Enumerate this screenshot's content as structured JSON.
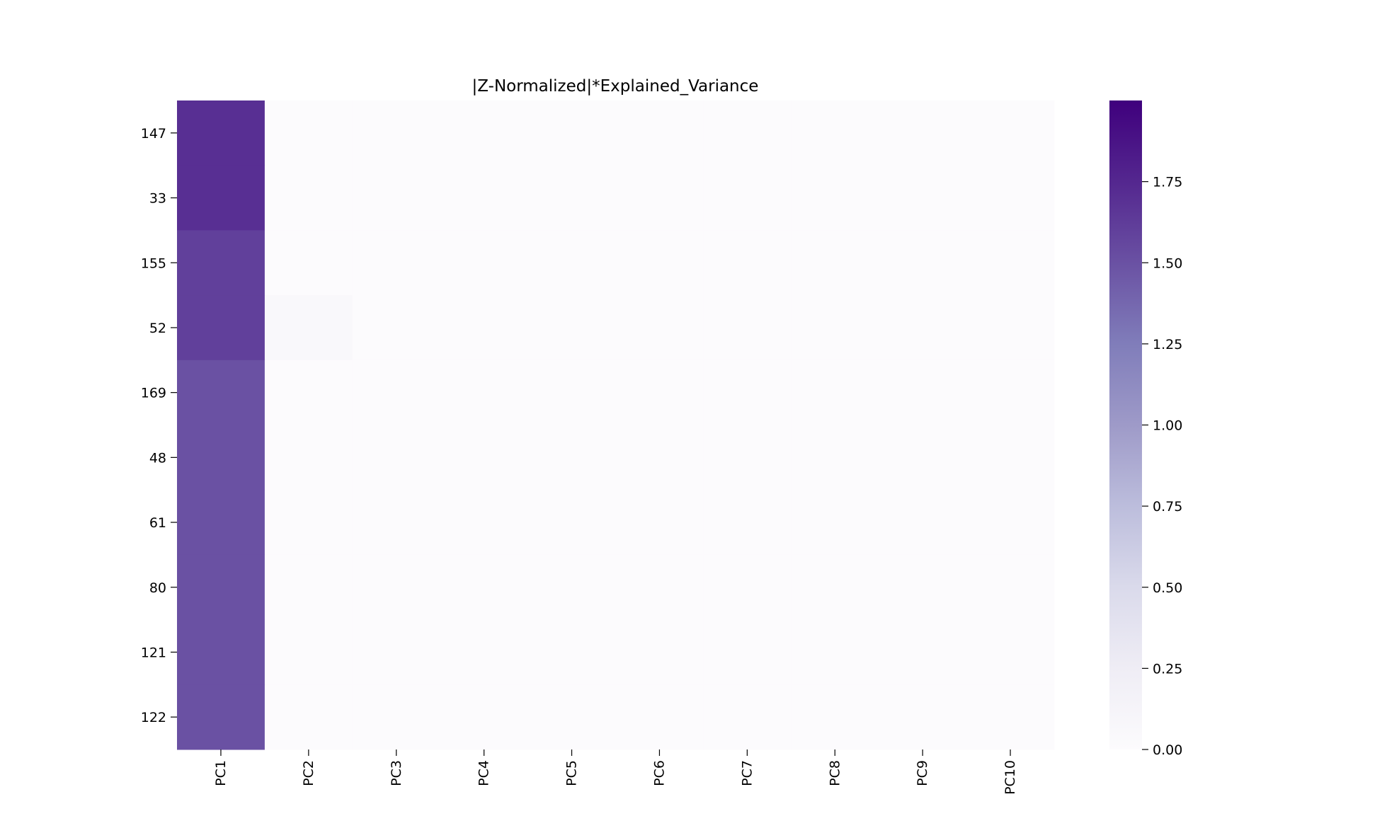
{
  "chart_data": {
    "type": "heatmap",
    "title": "|Z-Normalized|*Explained_Variance",
    "xlabel": "",
    "ylabel": "",
    "x_categories": [
      "PC1",
      "PC2",
      "PC3",
      "PC4",
      "PC5",
      "PC6",
      "PC7",
      "PC8",
      "PC9",
      "PC10"
    ],
    "y_categories": [
      "147",
      "33",
      "155",
      "52",
      "169",
      "48",
      "61",
      "80",
      "121",
      "122"
    ],
    "values": [
      [
        1.7,
        0.0,
        0.0,
        0.0,
        0.0,
        0.0,
        0.0,
        0.0,
        0.0,
        0.0
      ],
      [
        1.7,
        0.0,
        0.0,
        0.0,
        0.0,
        0.0,
        0.0,
        0.0,
        0.0,
        0.0
      ],
      [
        1.6,
        0.0,
        0.0,
        0.0,
        0.0,
        0.0,
        0.0,
        0.0,
        0.0,
        0.0
      ],
      [
        1.6,
        0.05,
        0.0,
        0.0,
        0.0,
        0.0,
        0.0,
        0.0,
        0.0,
        0.0
      ],
      [
        1.5,
        0.0,
        0.0,
        0.0,
        0.0,
        0.0,
        0.0,
        0.0,
        0.0,
        0.0
      ],
      [
        1.5,
        0.0,
        0.0,
        0.0,
        0.0,
        0.0,
        0.0,
        0.0,
        0.0,
        0.0
      ],
      [
        1.5,
        0.0,
        0.0,
        0.0,
        0.0,
        0.0,
        0.0,
        0.0,
        0.0,
        0.0
      ],
      [
        1.5,
        0.0,
        0.0,
        0.0,
        0.0,
        0.0,
        0.0,
        0.0,
        0.0,
        0.0
      ],
      [
        1.5,
        0.0,
        0.0,
        0.0,
        0.0,
        0.0,
        0.0,
        0.0,
        0.0,
        0.0
      ],
      [
        1.5,
        0.0,
        0.0,
        0.0,
        0.0,
        0.0,
        0.0,
        0.0,
        0.0,
        0.0
      ]
    ],
    "colorbar": {
      "min": 0,
      "max": 2.0,
      "ticks": [
        0.0,
        0.25,
        0.5,
        0.75,
        1.0,
        1.25,
        1.5,
        1.75
      ],
      "tick_labels": [
        "0.00",
        "0.25",
        "0.50",
        "0.75",
        "1.00",
        "1.25",
        "1.50",
        "1.75"
      ],
      "colormap": "Purples",
      "colormap_stops": [
        "#fcfbfd",
        "#efedf5",
        "#dadaeb",
        "#bcbddc",
        "#9e9ac8",
        "#807dba",
        "#6a51a3",
        "#54278f",
        "#3f007d"
      ]
    },
    "grid": false
  }
}
